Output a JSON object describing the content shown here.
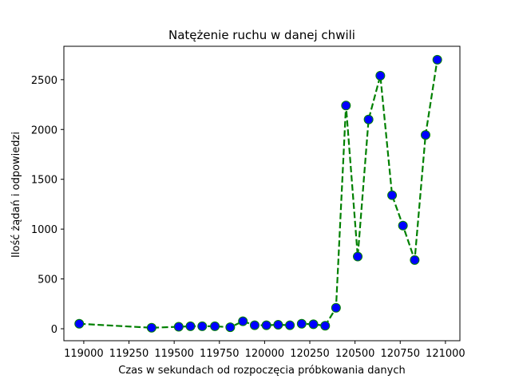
{
  "chart_data": {
    "type": "line",
    "title": "Natężenie ruchu w danej chwili",
    "xlabel": "Czas w sekundach od rozpoczęcia próbkowania danych",
    "ylabel": "Ilość żądań i odpowiedzi",
    "xlim": [
      118890,
      121080
    ],
    "ylim": [
      -120,
      2835
    ],
    "xticks": [
      119000,
      119250,
      119500,
      119750,
      120000,
      120250,
      120500,
      120750,
      121000
    ],
    "xtick_labels": [
      "119000",
      "119250",
      "119500",
      "119750",
      "120000",
      "120250",
      "120500",
      "120750",
      "121000"
    ],
    "yticks": [
      0,
      500,
      1000,
      1500,
      2000,
      2500
    ],
    "ytick_labels": [
      "0",
      "500",
      "1000",
      "1500",
      "2000",
      "2500"
    ],
    "grid": false,
    "series": [
      {
        "line_color": "#008000",
        "line_style": "dashed",
        "marker": "circle",
        "marker_color": "#0000ff",
        "x": [
          118975,
          119375,
          119525,
          119590,
          119655,
          119725,
          119810,
          119880,
          119945,
          120010,
          120075,
          120140,
          120205,
          120270,
          120335,
          120395,
          120450,
          120515,
          120575,
          120640,
          120705,
          120765,
          120830,
          120890,
          120955
        ],
        "y": [
          50,
          10,
          20,
          25,
          25,
          25,
          15,
          75,
          35,
          35,
          40,
          35,
          50,
          45,
          30,
          210,
          2240,
          725,
          2100,
          2540,
          1340,
          1035,
          690,
          1945,
          2700
        ]
      }
    ]
  }
}
